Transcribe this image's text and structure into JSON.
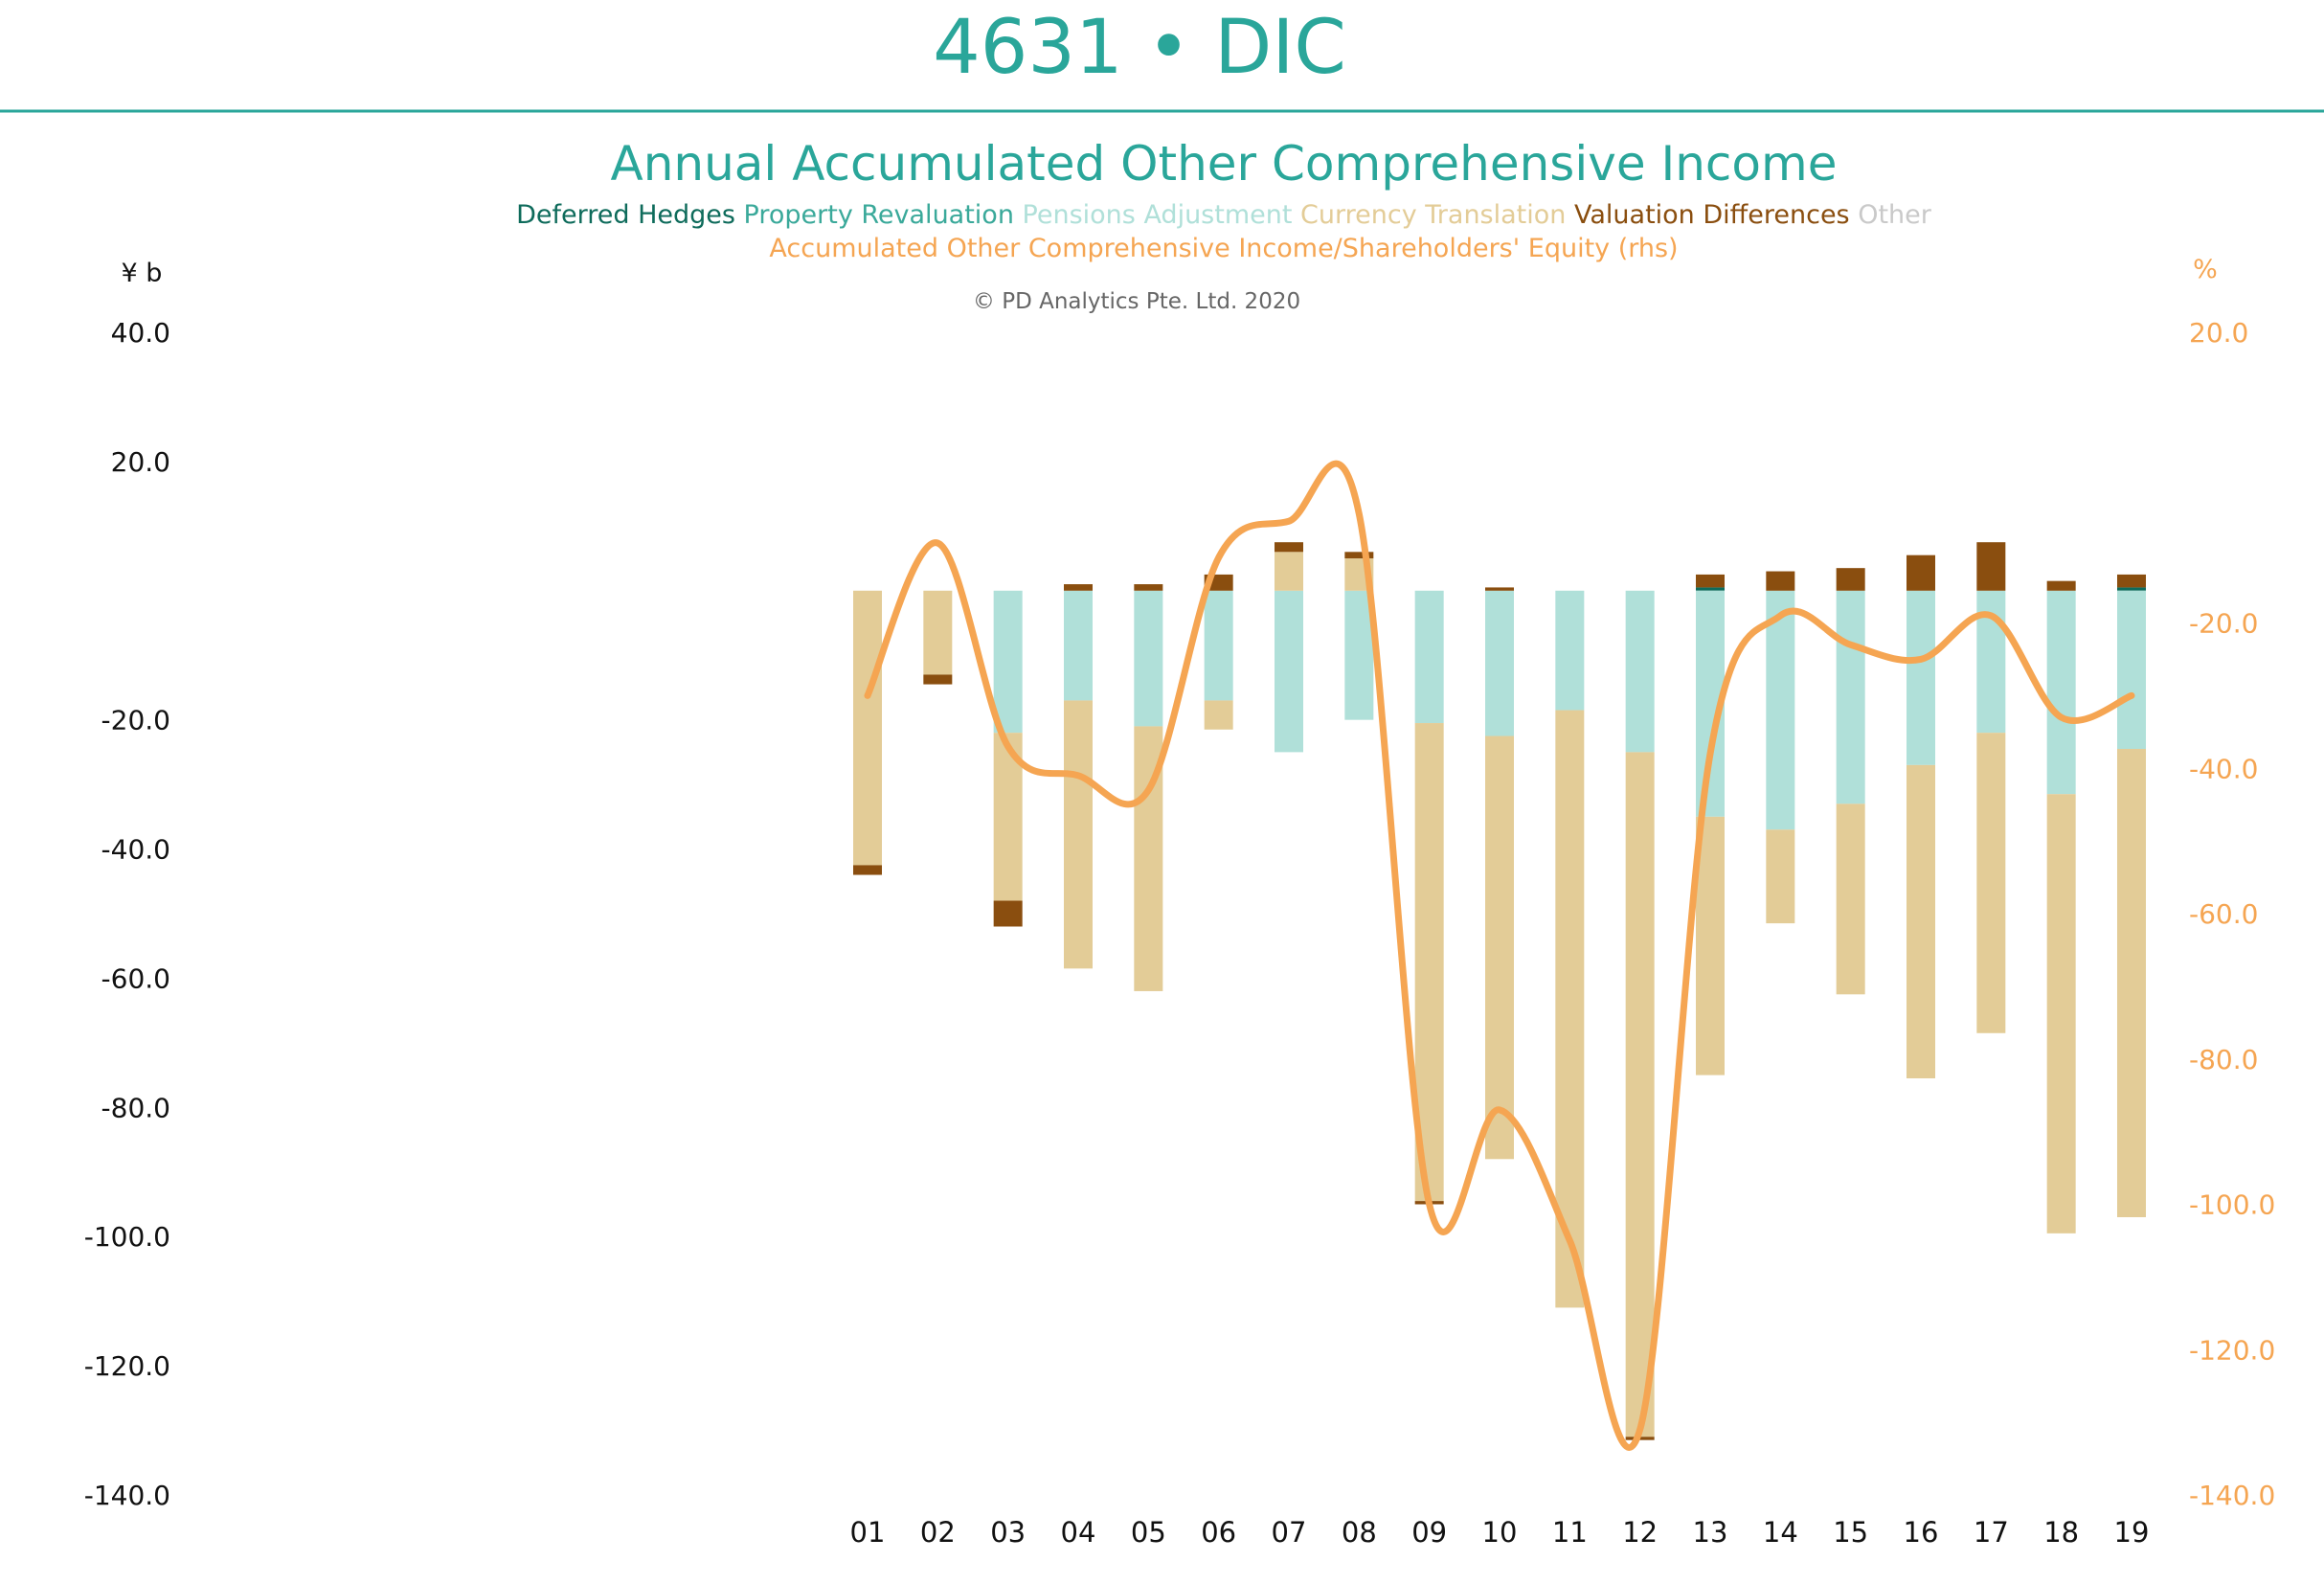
{
  "header": {
    "title": "4631 • DIC",
    "chart_title": "Annual Accumulated Other Comprehensive Income",
    "copyright": "© PD Analytics Pte. Ltd. 2020"
  },
  "legend": {
    "items": [
      {
        "label": "Deferred Hedges",
        "color": "#0e6b5b"
      },
      {
        "label": "Property Revaluation",
        "color": "#3aa99a"
      },
      {
        "label": "Pensions Adjustment",
        "color": "#b0e0d9"
      },
      {
        "label": "Currency Translation",
        "color": "#e3cc97"
      },
      {
        "label": "Valuation Differences",
        "color": "#8a4e0f"
      },
      {
        "label": "Other",
        "color": "#c9c9c9"
      }
    ],
    "ratio_label": "Accumulated Other Comprehensive Income/Shareholders' Equity (rhs)",
    "ratio_color": "#f5a552"
  },
  "chart_data": {
    "type": "bar",
    "stacked": true,
    "categories": [
      "01",
      "02",
      "03",
      "04",
      "05",
      "06",
      "07",
      "08",
      "09",
      "10",
      "11",
      "12",
      "13",
      "14",
      "15",
      "16",
      "17",
      "18",
      "19"
    ],
    "y_unit_label": "¥ b",
    "y2_unit_label": "%",
    "ylim": [
      -140,
      40
    ],
    "y_ticks": [
      "40.0",
      "20.0",
      "-20.0",
      "-40.0",
      "-60.0",
      "-80.0",
      "-100.0",
      "-120.0",
      "-140.0"
    ],
    "y2lim": [
      -140,
      20
    ],
    "y2_ticks": [
      "20.0",
      "-20.0",
      "-40.0",
      "-60.0",
      "-80.0",
      "-100.0",
      "-120.0",
      "-140.0"
    ],
    "grid": false,
    "series": [
      {
        "name": "Deferred Hedges",
        "color": "#0e6b5b",
        "values": [
          0,
          0,
          0,
          0,
          0,
          0,
          0,
          0,
          0,
          0,
          0,
          0,
          0.5,
          0,
          0,
          0,
          0,
          0,
          0.5
        ]
      },
      {
        "name": "Property Revaluation",
        "color": "#3aa99a",
        "values": [
          0,
          0,
          0,
          0,
          0,
          0,
          0,
          0,
          0,
          0,
          0,
          0,
          0,
          0,
          0,
          0,
          0,
          0,
          0
        ]
      },
      {
        "name": "Pensions Adjustment",
        "color": "#b0e0d9",
        "values": [
          0,
          0,
          -22,
          -17,
          -21,
          -17,
          -25,
          -20,
          -20.5,
          -22.5,
          -18.5,
          -25,
          -35,
          -37,
          -33,
          -27,
          -22,
          -31.5,
          -24.5
        ]
      },
      {
        "name": "Currency Translation",
        "color": "#e3cc97",
        "values": [
          -42.5,
          -13,
          -26,
          -41.5,
          -41,
          -4.5,
          6,
          5,
          -74,
          -65.5,
          -92.5,
          -106,
          -40,
          -14.5,
          -29.5,
          -48.5,
          -46.5,
          -68,
          -72.5
        ]
      },
      {
        "name": "Valuation Differences",
        "color": "#8a4e0f",
        "values": [
          -1.5,
          -1.5,
          -4,
          1,
          1,
          2.5,
          1.5,
          1,
          -0.5,
          0.5,
          0,
          -0.5,
          2,
          3,
          3.5,
          5.5,
          7.5,
          1.5,
          2
        ]
      },
      {
        "name": "Other",
        "color": "#c9c9c9",
        "values": [
          0,
          0,
          0,
          0,
          0,
          0,
          0,
          0,
          0,
          0,
          0,
          0,
          0,
          0,
          0,
          0,
          0,
          0,
          0
        ]
      }
    ],
    "ratio_series": {
      "name": "Accumulated Other Comprehensive Income/Shareholders' Equity (rhs)",
      "color": "#f5a552",
      "values": [
        -30,
        -9,
        -37,
        -41,
        -43,
        -11,
        -6,
        -5,
        -100,
        -87,
        -105,
        -131,
        -38,
        -19,
        -23,
        -25,
        -19,
        -33,
        -30
      ]
    }
  }
}
